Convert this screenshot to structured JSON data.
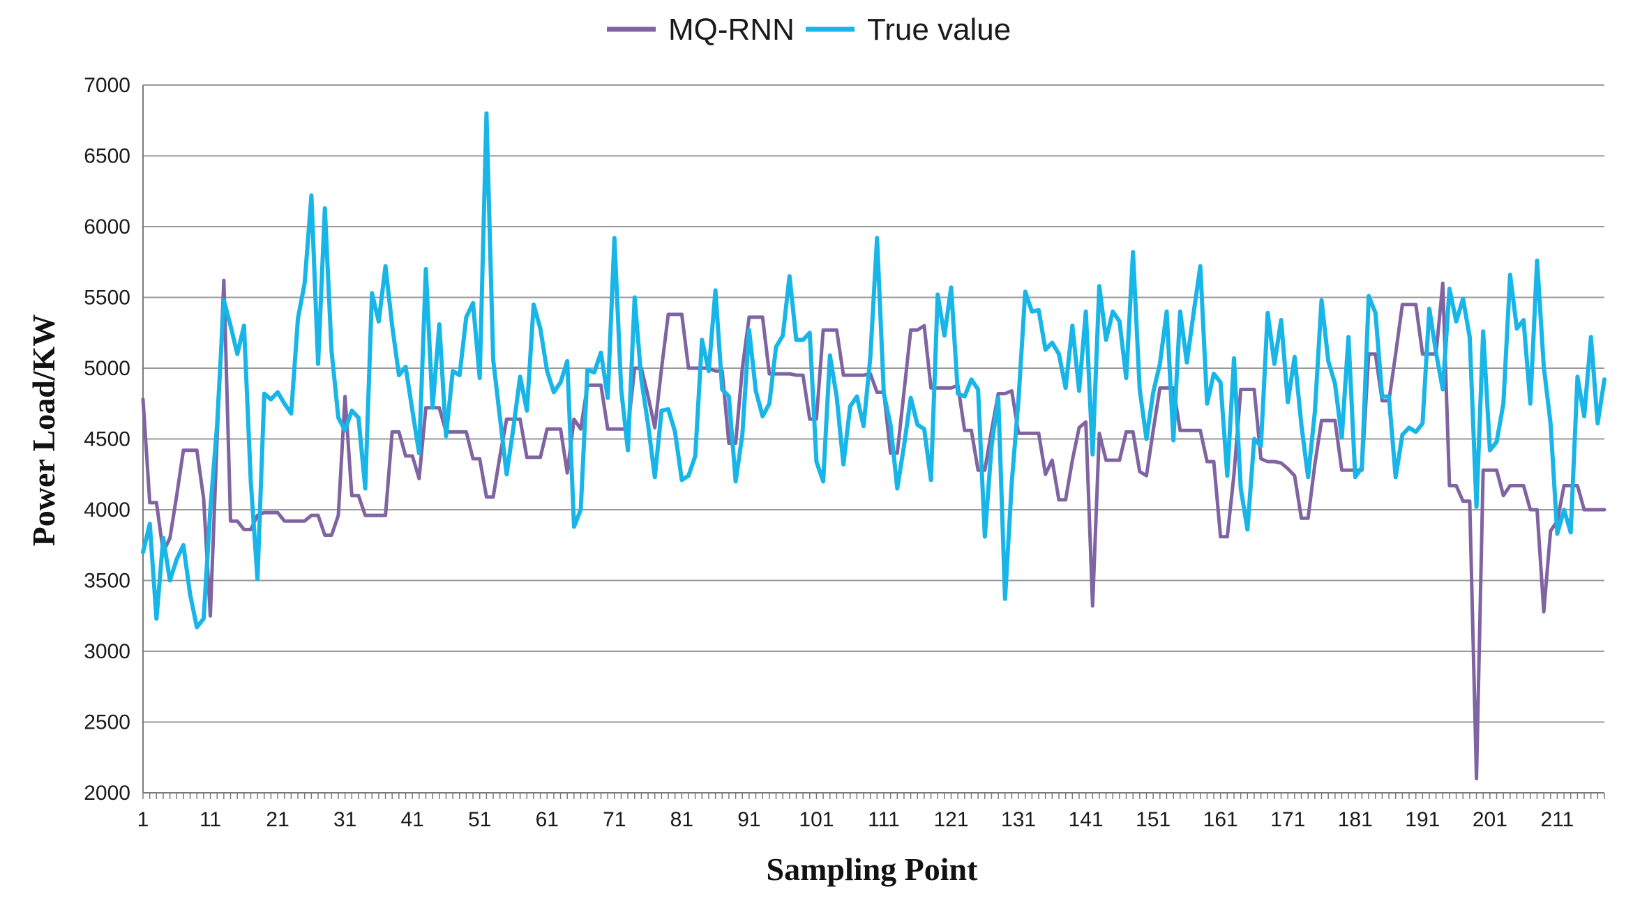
{
  "chart_data": {
    "type": "line",
    "title": "",
    "xlabel": "Sampling Point",
    "ylabel": "Power Load/KW",
    "ylim": [
      2000,
      7000
    ],
    "xlim": [
      1,
      218
    ],
    "yticks": [
      2000,
      2500,
      3000,
      3500,
      4000,
      4500,
      5000,
      5500,
      6000,
      6500,
      7000
    ],
    "ytick_labels": [
      "2000",
      "2500",
      "3000",
      "3500",
      "4000",
      "4500",
      "5000",
      "5500",
      "6000",
      "6500",
      "7000"
    ],
    "xticks": [
      1,
      11,
      21,
      31,
      41,
      51,
      61,
      71,
      81,
      91,
      101,
      111,
      121,
      131,
      141,
      151,
      161,
      171,
      181,
      191,
      201,
      211
    ],
    "xtick_labels": [
      "1",
      "11",
      "21",
      "31",
      "41",
      "51",
      "61",
      "71",
      "81",
      "91",
      "101",
      "111",
      "121",
      "131",
      "141",
      "151",
      "161",
      "171",
      "181",
      "191",
      "201",
      "211"
    ],
    "grid": true,
    "legend_position": "top-center",
    "series": [
      {
        "name": "MQ-RNN",
        "color": "#8064a2",
        "x": [
          1,
          2,
          3,
          4,
          5,
          6,
          7,
          8,
          9,
          10,
          11,
          12,
          13,
          14,
          15,
          16,
          17,
          18,
          19,
          20,
          21,
          22,
          23,
          24,
          25,
          26,
          27,
          28,
          29,
          30,
          31,
          32,
          33,
          34,
          35,
          36,
          37,
          38,
          39,
          40,
          41,
          42,
          43,
          44,
          45,
          46,
          47,
          48,
          49,
          50,
          51,
          52,
          53,
          54,
          55,
          56,
          57,
          58,
          59,
          60,
          61,
          62,
          63,
          64,
          65,
          66,
          67,
          68,
          69,
          70,
          71,
          72,
          73,
          74,
          75,
          76,
          77,
          78,
          79,
          80,
          81,
          82,
          83,
          84,
          85,
          86,
          87,
          88,
          89,
          90,
          91,
          92,
          93,
          94,
          95,
          96,
          97,
          98,
          99,
          100,
          101,
          102,
          103,
          104,
          105,
          106,
          107,
          108,
          109,
          110,
          111,
          112,
          113,
          114,
          115,
          116,
          117,
          118,
          119,
          120,
          121,
          122,
          123,
          124,
          125,
          126,
          127,
          128,
          129,
          130,
          131,
          132,
          133,
          134,
          135,
          136,
          137,
          138,
          139,
          140,
          141,
          142,
          143,
          144,
          145,
          146,
          147,
          148,
          149,
          150,
          151,
          152,
          153,
          154,
          155,
          156,
          157,
          158,
          159,
          160,
          161,
          162,
          163,
          164,
          165,
          166,
          167,
          168,
          169,
          170,
          171,
          172,
          173,
          174,
          175,
          176,
          177,
          178,
          179,
          180,
          181,
          182,
          183,
          184,
          185,
          186,
          187,
          188,
          189,
          190,
          191,
          192,
          193,
          194,
          195,
          196,
          197,
          198,
          199,
          200,
          201,
          202,
          203,
          204,
          205,
          206,
          207,
          208,
          209,
          210,
          211,
          212,
          213,
          214,
          215,
          216,
          217,
          218
        ],
        "values": [
          4780,
          4050,
          4050,
          3700,
          3800,
          4100,
          4420,
          4420,
          4420,
          4080,
          3250,
          4500,
          5620,
          3920,
          3920,
          3860,
          3860,
          3960,
          3980,
          3980,
          3980,
          3920,
          3920,
          3920,
          3920,
          3960,
          3960,
          3820,
          3820,
          3960,
          4800,
          4100,
          4100,
          3960,
          3960,
          3960,
          3960,
          4550,
          4550,
          4380,
          4380,
          4220,
          4720,
          4720,
          4720,
          4550,
          4550,
          4550,
          4550,
          4360,
          4360,
          4090,
          4090,
          4380,
          4640,
          4640,
          4640,
          4370,
          4370,
          4370,
          4570,
          4570,
          4570,
          4260,
          4640,
          4570,
          4880,
          4880,
          4880,
          4570,
          4570,
          4570,
          4570,
          5000,
          5000,
          4800,
          4580,
          5000,
          5380,
          5380,
          5380,
          5000,
          5000,
          5000,
          5000,
          4980,
          4980,
          4470,
          4470,
          5000,
          5360,
          5360,
          5360,
          4960,
          4960,
          4960,
          4960,
          4950,
          4950,
          4640,
          4640,
          5270,
          5270,
          5270,
          4950,
          4950,
          4950,
          4950,
          4960,
          4830,
          4830,
          4400,
          4400,
          4830,
          5270,
          5270,
          5300,
          4860,
          4860,
          4860,
          4860,
          4880,
          4560,
          4560,
          4280,
          4280,
          4560,
          4820,
          4820,
          4840,
          4540,
          4540,
          4540,
          4540,
          4250,
          4350,
          4070,
          4070,
          4350,
          4580,
          4620,
          3320,
          4540,
          4350,
          4350,
          4350,
          4550,
          4550,
          4270,
          4240,
          4560,
          4860,
          4860,
          4860,
          4560,
          4560,
          4560,
          4560,
          4340,
          4340,
          3810,
          3810,
          4250,
          4850,
          4850,
          4850,
          4360,
          4340,
          4340,
          4330,
          4290,
          4240,
          3940,
          3940,
          4320,
          4630,
          4630,
          4630,
          4280,
          4280,
          4280,
          4280,
          5100,
          5100,
          4770,
          4770,
          5100,
          5450,
          5450,
          5450,
          5100,
          5100,
          5100,
          5600,
          4170,
          4170,
          4060,
          4060,
          2100,
          4280,
          4280,
          4280,
          4100,
          4170,
          4170,
          4170,
          4000,
          4000,
          3280,
          3850,
          3920,
          4170,
          4170,
          4170,
          4000,
          4000,
          4000,
          4000
        ]
      },
      {
        "name": "True value",
        "color": "#17b5e8",
        "x": [
          1,
          2,
          3,
          4,
          5,
          6,
          7,
          8,
          9,
          10,
          11,
          12,
          13,
          14,
          15,
          16,
          17,
          18,
          19,
          20,
          21,
          22,
          23,
          24,
          25,
          26,
          27,
          28,
          29,
          30,
          31,
          32,
          33,
          34,
          35,
          36,
          37,
          38,
          39,
          40,
          41,
          42,
          43,
          44,
          45,
          46,
          47,
          48,
          49,
          50,
          51,
          52,
          53,
          54,
          55,
          56,
          57,
          58,
          59,
          60,
          61,
          62,
          63,
          64,
          65,
          66,
          67,
          68,
          69,
          70,
          71,
          72,
          73,
          74,
          75,
          76,
          77,
          78,
          79,
          80,
          81,
          82,
          83,
          84,
          85,
          86,
          87,
          88,
          89,
          90,
          91,
          92,
          93,
          94,
          95,
          96,
          97,
          98,
          99,
          100,
          101,
          102,
          103,
          104,
          105,
          106,
          107,
          108,
          109,
          110,
          111,
          112,
          113,
          114,
          115,
          116,
          117,
          118,
          119,
          120,
          121,
          122,
          123,
          124,
          125,
          126,
          127,
          128,
          129,
          130,
          131,
          132,
          133,
          134,
          135,
          136,
          137,
          138,
          139,
          140,
          141,
          142,
          143,
          144,
          145,
          146,
          147,
          148,
          149,
          150,
          151,
          152,
          153,
          154,
          155,
          156,
          157,
          158,
          159,
          160,
          161,
          162,
          163,
          164,
          165,
          166,
          167,
          168,
          169,
          170,
          171,
          172,
          173,
          174,
          175,
          176,
          177,
          178,
          179,
          180,
          181,
          182,
          183,
          184,
          185,
          186,
          187,
          188,
          189,
          190,
          191,
          192,
          193,
          194,
          195,
          196,
          197,
          198,
          199,
          200,
          201,
          202,
          203,
          204,
          205,
          206,
          207,
          208,
          209,
          210,
          211,
          212,
          213,
          214,
          215,
          216,
          217,
          218
        ],
        "values": [
          3700,
          3900,
          3230,
          3800,
          3500,
          3650,
          3750,
          3400,
          3170,
          3230,
          4000,
          4600,
          5480,
          5300,
          5100,
          5300,
          4200,
          3510,
          4820,
          4780,
          4830,
          4750,
          4680,
          5350,
          5600,
          6220,
          5030,
          6130,
          5120,
          4650,
          4560,
          4700,
          4650,
          4150,
          5530,
          5330,
          5720,
          5300,
          4950,
          5010,
          4700,
          4400,
          5700,
          4720,
          5310,
          4520,
          4980,
          4950,
          5360,
          5460,
          4930,
          6800,
          5060,
          4650,
          4250,
          4580,
          4940,
          4700,
          5450,
          5280,
          4980,
          4830,
          4900,
          5050,
          3880,
          4000,
          4990,
          4970,
          5110,
          4790,
          5920,
          4850,
          4420,
          5500,
          4920,
          4600,
          4230,
          4700,
          4710,
          4550,
          4210,
          4240,
          4380,
          5200,
          4980,
          5550,
          4850,
          4800,
          4200,
          4530,
          5270,
          4840,
          4660,
          4750,
          5150,
          5230,
          5650,
          5200,
          5200,
          5250,
          4340,
          4200,
          5090,
          4800,
          4320,
          4730,
          4800,
          4590,
          5080,
          5920,
          4820,
          4600,
          4150,
          4450,
          4790,
          4600,
          4570,
          4210,
          5520,
          5230,
          5570,
          4820,
          4800,
          4920,
          4850,
          3810,
          4450,
          4790,
          3370,
          4190,
          4780,
          5540,
          5400,
          5410,
          5130,
          5180,
          5100,
          4860,
          5300,
          4840,
          5400,
          4390,
          5580,
          5200,
          5400,
          5330,
          4930,
          5820,
          4850,
          4500,
          4830,
          5030,
          5400,
          4490,
          5400,
          5040,
          5390,
          5720,
          4750,
          4960,
          4900,
          4240,
          5070,
          4150,
          3860,
          4500,
          4450,
          5390,
          5030,
          5340,
          4760,
          5080,
          4600,
          4230,
          4690,
          5480,
          5050,
          4890,
          4510,
          5220,
          4230,
          4300,
          5510,
          5390,
          4800,
          4800,
          4230,
          4530,
          4580,
          4550,
          4610,
          5420,
          5110,
          4850,
          5560,
          5330,
          5490,
          5220,
          4020,
          5260,
          4420,
          4480,
          4750,
          5660,
          5280,
          5340,
          4750,
          5760,
          5010,
          4610,
          3830,
          4000,
          3840,
          4940,
          4660,
          5220,
          4610,
          4920
        ]
      }
    ]
  }
}
